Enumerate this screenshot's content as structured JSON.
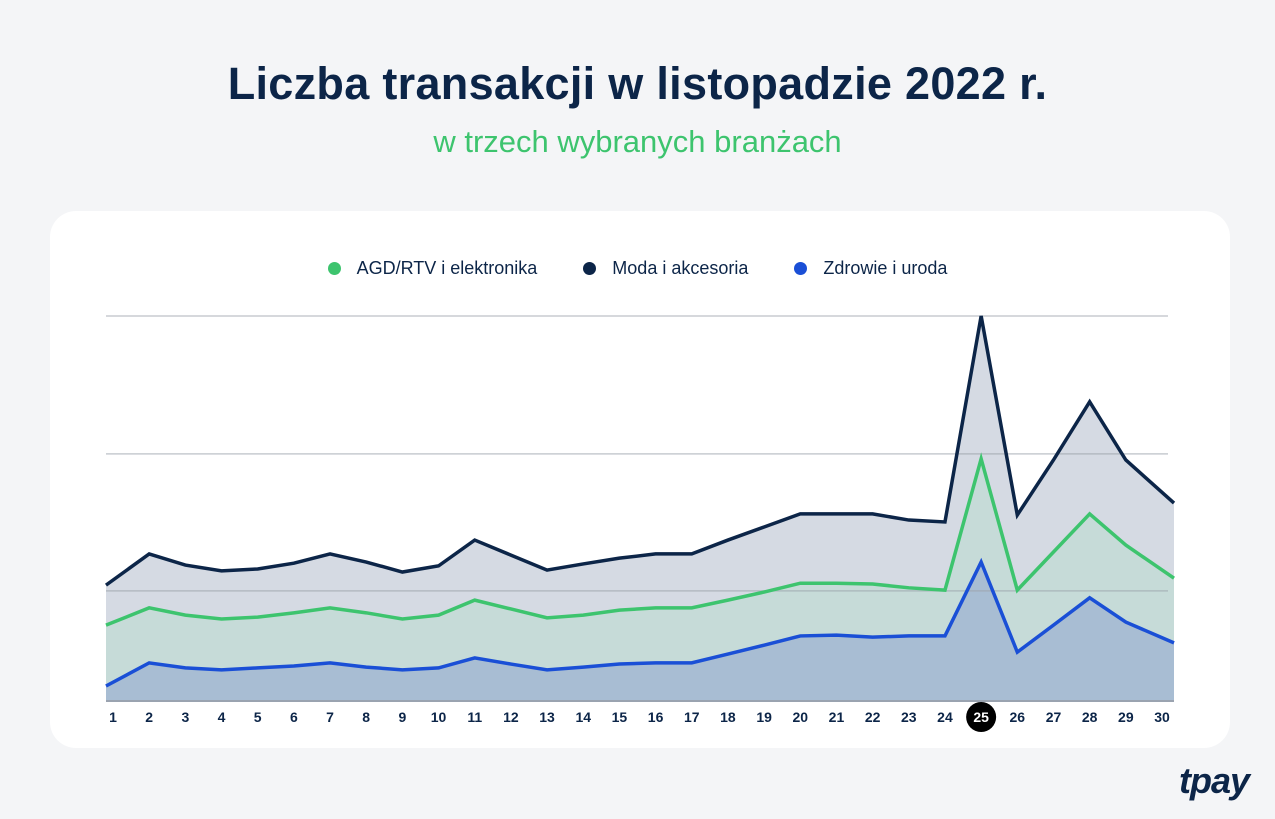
{
  "title": "Liczba transakcji w listopadzie 2022 r.",
  "subtitle": "w trzech wybranych branżach",
  "logo": "tpay",
  "chart_data": {
    "type": "area",
    "title": "Liczba transakcji w listopadzie 2022 r.",
    "subtitle": "w trzech wybranych branżach",
    "xlabel": "",
    "ylabel": "",
    "grid": true,
    "legend": "top-center",
    "highlighted_category": "25",
    "ylim": [
      0,
      100
    ],
    "categories": [
      "1",
      "2",
      "3",
      "4",
      "5",
      "6",
      "7",
      "8",
      "9",
      "10",
      "11",
      "12",
      "13",
      "14",
      "15",
      "16",
      "17",
      "18",
      "19",
      "20",
      "21",
      "22",
      "23",
      "24",
      "25",
      "26",
      "27",
      "28",
      "29",
      "30"
    ],
    "series": [
      {
        "name": "Moda i akcesoria",
        "color": "#0c2548",
        "fill": "#d5dae3",
        "values": [
          30.1,
          38.2,
          35.3,
          33.8,
          34.3,
          35.8,
          38.2,
          36.1,
          33.5,
          35.1,
          41.8,
          37.9,
          34.0,
          35.6,
          37.1,
          38.2,
          38.2,
          41.8,
          45.2,
          48.6,
          48.6,
          48.6,
          47.0,
          46.5,
          100,
          48.3,
          62.6,
          77.7,
          62.6,
          51.4
        ]
      },
      {
        "name": "AGD/RTV i elektronika",
        "color": "#3dc46e",
        "fill": "#c6dbd8",
        "values": [
          19.7,
          24.2,
          22.3,
          21.3,
          21.8,
          22.9,
          24.2,
          22.9,
          21.3,
          22.3,
          26.2,
          23.9,
          21.6,
          22.3,
          23.6,
          24.2,
          24.2,
          26.2,
          28.3,
          30.6,
          30.6,
          30.4,
          29.4,
          28.8,
          62.9,
          28.8,
          38.7,
          48.6,
          40.5,
          31.9
        ]
      },
      {
        "name": "Zdrowie i uroda",
        "color": "#1a4fd6",
        "fill": "#a8bdd3",
        "values": [
          3.9,
          9.9,
          8.6,
          8.1,
          8.6,
          9.1,
          9.9,
          8.8,
          8.1,
          8.6,
          11.2,
          9.6,
          8.1,
          8.8,
          9.6,
          9.9,
          9.9,
          12.2,
          14.5,
          16.9,
          17.1,
          16.6,
          16.9,
          16.9,
          36.1,
          12.7,
          19.7,
          26.8,
          20.5,
          15.1
        ]
      }
    ]
  }
}
